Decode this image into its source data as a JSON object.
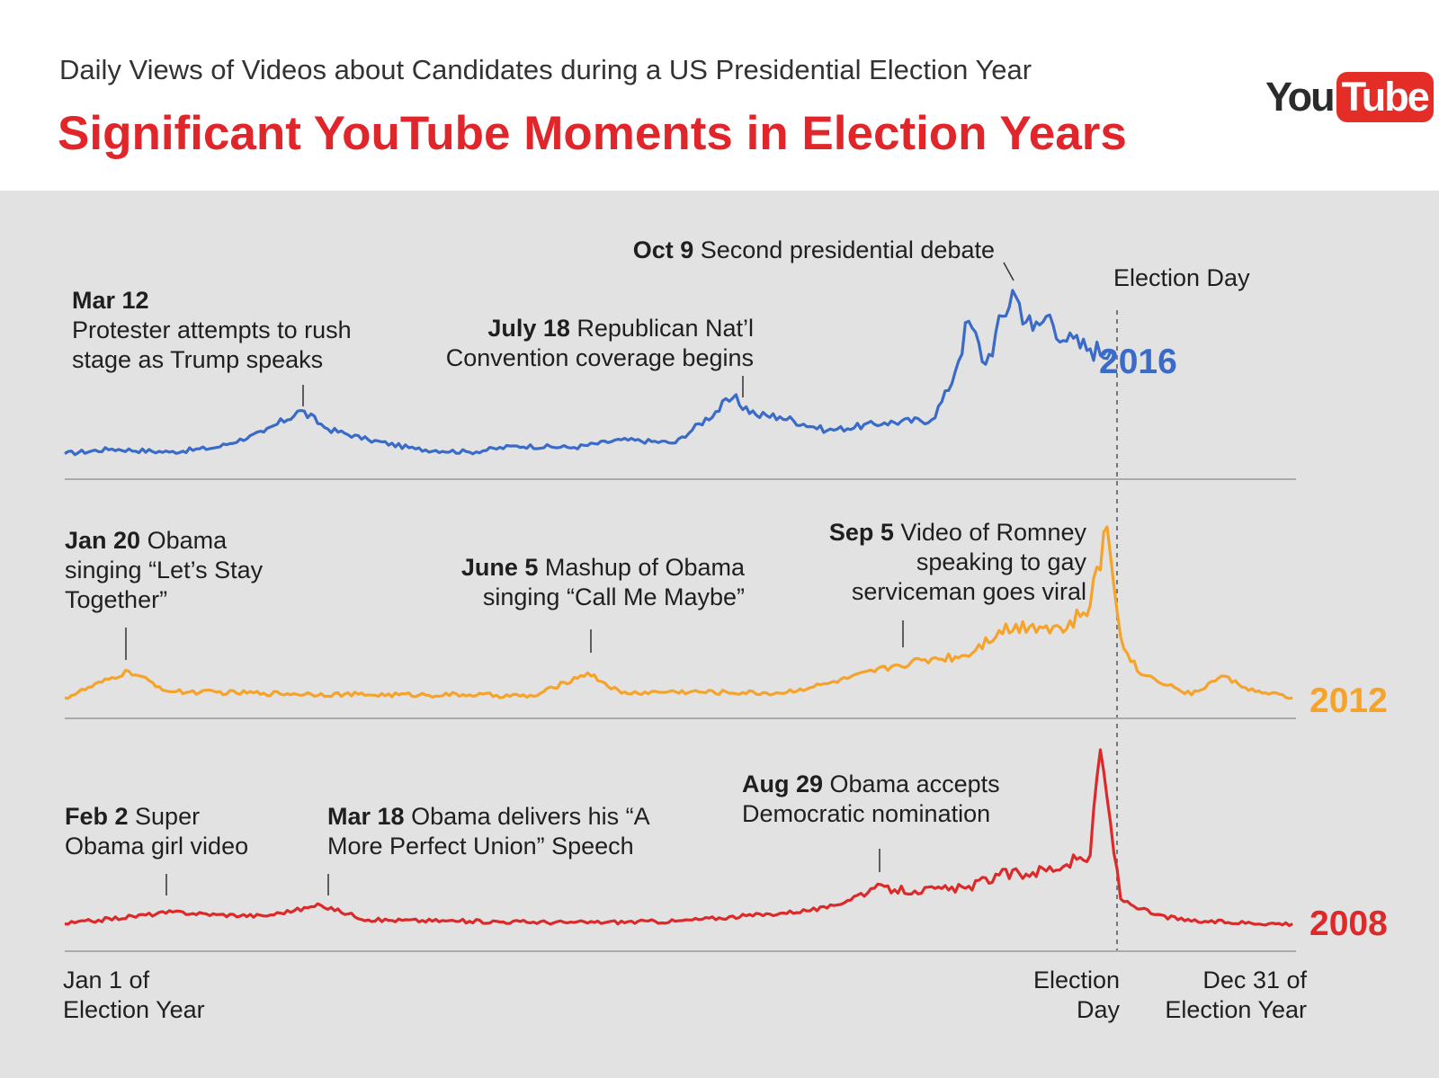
{
  "header": {
    "subtitle": "Daily Views of Videos about Candidates during a US Presidential Election Year",
    "title": "Significant YouTube Moments in Election Years",
    "logo": {
      "you": "You",
      "tube": "Tube"
    }
  },
  "colors": {
    "title": "#e0262a",
    "y2016": "#3a6bc9",
    "y2012": "#f5a32a",
    "y2008": "#dc2a2a",
    "panel": "#e2e2e2"
  },
  "chart_data": {
    "type": "line",
    "subtitle": "Daily Views of Videos about Candidates during a US Presidential Election Year",
    "title": "Significant YouTube Moments in Election Years",
    "x_axis": {
      "start_label": "Jan 1 of Election Year",
      "start_label_lines": [
        "Jan 1 of",
        "Election Year"
      ],
      "election_label_lines": [
        "Election",
        "Day"
      ],
      "end_label_lines": [
        "Dec 31 of",
        "Election Year"
      ],
      "election_day_marker": "Election Day"
    },
    "series": [
      {
        "name": "2016",
        "color": "#3a6bc9",
        "x": [
          "Jan 1",
          "Jan 15",
          "Feb 1",
          "Feb 15",
          "Mar 1",
          "Mar 12",
          "Mar 20",
          "Apr 1",
          "Apr 15",
          "May 1",
          "May 15",
          "Jun 1",
          "Jun 15",
          "Jul 1",
          "Jul 18",
          "Jul 25",
          "Aug 1",
          "Aug 15",
          "Sep 1",
          "Sep 15",
          "Sep 20",
          "Sep 26",
          "Oct 1",
          "Oct 9",
          "Oct 15",
          "Oct 20",
          "Oct 25",
          "Nov 1",
          "Nov 7"
        ],
        "y": [
          2,
          5,
          3,
          6,
          16,
          30,
          18,
          11,
          5,
          3,
          7,
          6,
          11,
          9,
          38,
          27,
          26,
          17,
          22,
          24,
          43,
          88,
          60,
          108,
          82,
          92,
          75,
          70,
          68
        ],
        "annotations": [
          {
            "date": "Mar 12",
            "bold": "Mar 12",
            "text_lines": [
              "Protester attempts to rush",
              "stage as Trump speaks"
            ]
          },
          {
            "date": "July 18",
            "bold": "July 18",
            "text_lines": [
              "Republican Nat’l",
              "Convention coverage begins"
            ]
          },
          {
            "date": "Oct 9",
            "bold": "Oct 9",
            "text_lines": [
              "Second presidential debate"
            ]
          }
        ]
      },
      {
        "name": "2012",
        "color": "#f5a32a",
        "x": [
          "Jan 1",
          "Jan 20",
          "Feb 1",
          "Mar 1",
          "Apr 1",
          "May 1",
          "May 20",
          "Jun 5",
          "Jun 15",
          "Jul 1",
          "Aug 1",
          "Aug 15",
          "Sep 5",
          "Sep 15",
          "Sep 25",
          "Oct 5",
          "Oct 15",
          "Oct 25",
          "Nov 1",
          "Nov 6",
          "Nov 10",
          "Nov 15",
          "Dec 1",
          "Dec 10",
          "Dec 20",
          "Dec 31"
        ],
        "y": [
          1,
          18,
          5,
          4,
          3,
          3,
          2,
          17,
          4,
          5,
          4,
          10,
          22,
          26,
          28,
          44,
          48,
          45,
          60,
          110,
          40,
          18,
          3,
          15,
          5,
          1
        ],
        "annotations": [
          {
            "date": "Jan 20",
            "bold": "Jan 20",
            "text_lines": [
              "Obama",
              "singing “Let’s Stay",
              "Together”"
            ]
          },
          {
            "date": "June 5",
            "bold": "June 5",
            "text_lines": [
              "Mashup of Obama",
              "singing “Call Me Maybe”"
            ]
          },
          {
            "date": "Sep 5",
            "bold": "Sep 5",
            "text_lines": [
              "Video of Romney",
              "speaking to gay",
              "serviceman goes viral"
            ]
          }
        ]
      },
      {
        "name": "2008",
        "color": "#dc2a2a",
        "x": [
          "Jan 1",
          "Feb 2",
          "Feb 15",
          "Mar 1",
          "Mar 18",
          "Apr 1",
          "May 1",
          "Jun 1",
          "Jul 1",
          "Aug 1",
          "Aug 15",
          "Aug 29",
          "Sep 10",
          "Sep 25",
          "Oct 5",
          "Oct 15",
          "Oct 25",
          "Nov 1",
          "Nov 4",
          "Nov 10",
          "Nov 20",
          "Dec 1",
          "Dec 31"
        ],
        "y": [
          3,
          12,
          10,
          9,
          17,
          6,
          5,
          4,
          5,
          11,
          15,
          30,
          28,
          30,
          40,
          42,
          48,
          55,
          135,
          22,
          10,
          5,
          3
        ],
        "annotations": [
          {
            "date": "Feb 2",
            "bold": "Feb 2",
            "text_lines": [
              "Super",
              "Obama girl video"
            ]
          },
          {
            "date": "Mar 18",
            "bold": "Mar 18",
            "text_lines": [
              "Obama delivers his “A",
              "More Perfect Union” Speech"
            ]
          },
          {
            "date": "Aug 29",
            "bold": "Aug 29",
            "text_lines": [
              "Obama accepts",
              "Democratic nomination"
            ]
          }
        ]
      }
    ]
  }
}
